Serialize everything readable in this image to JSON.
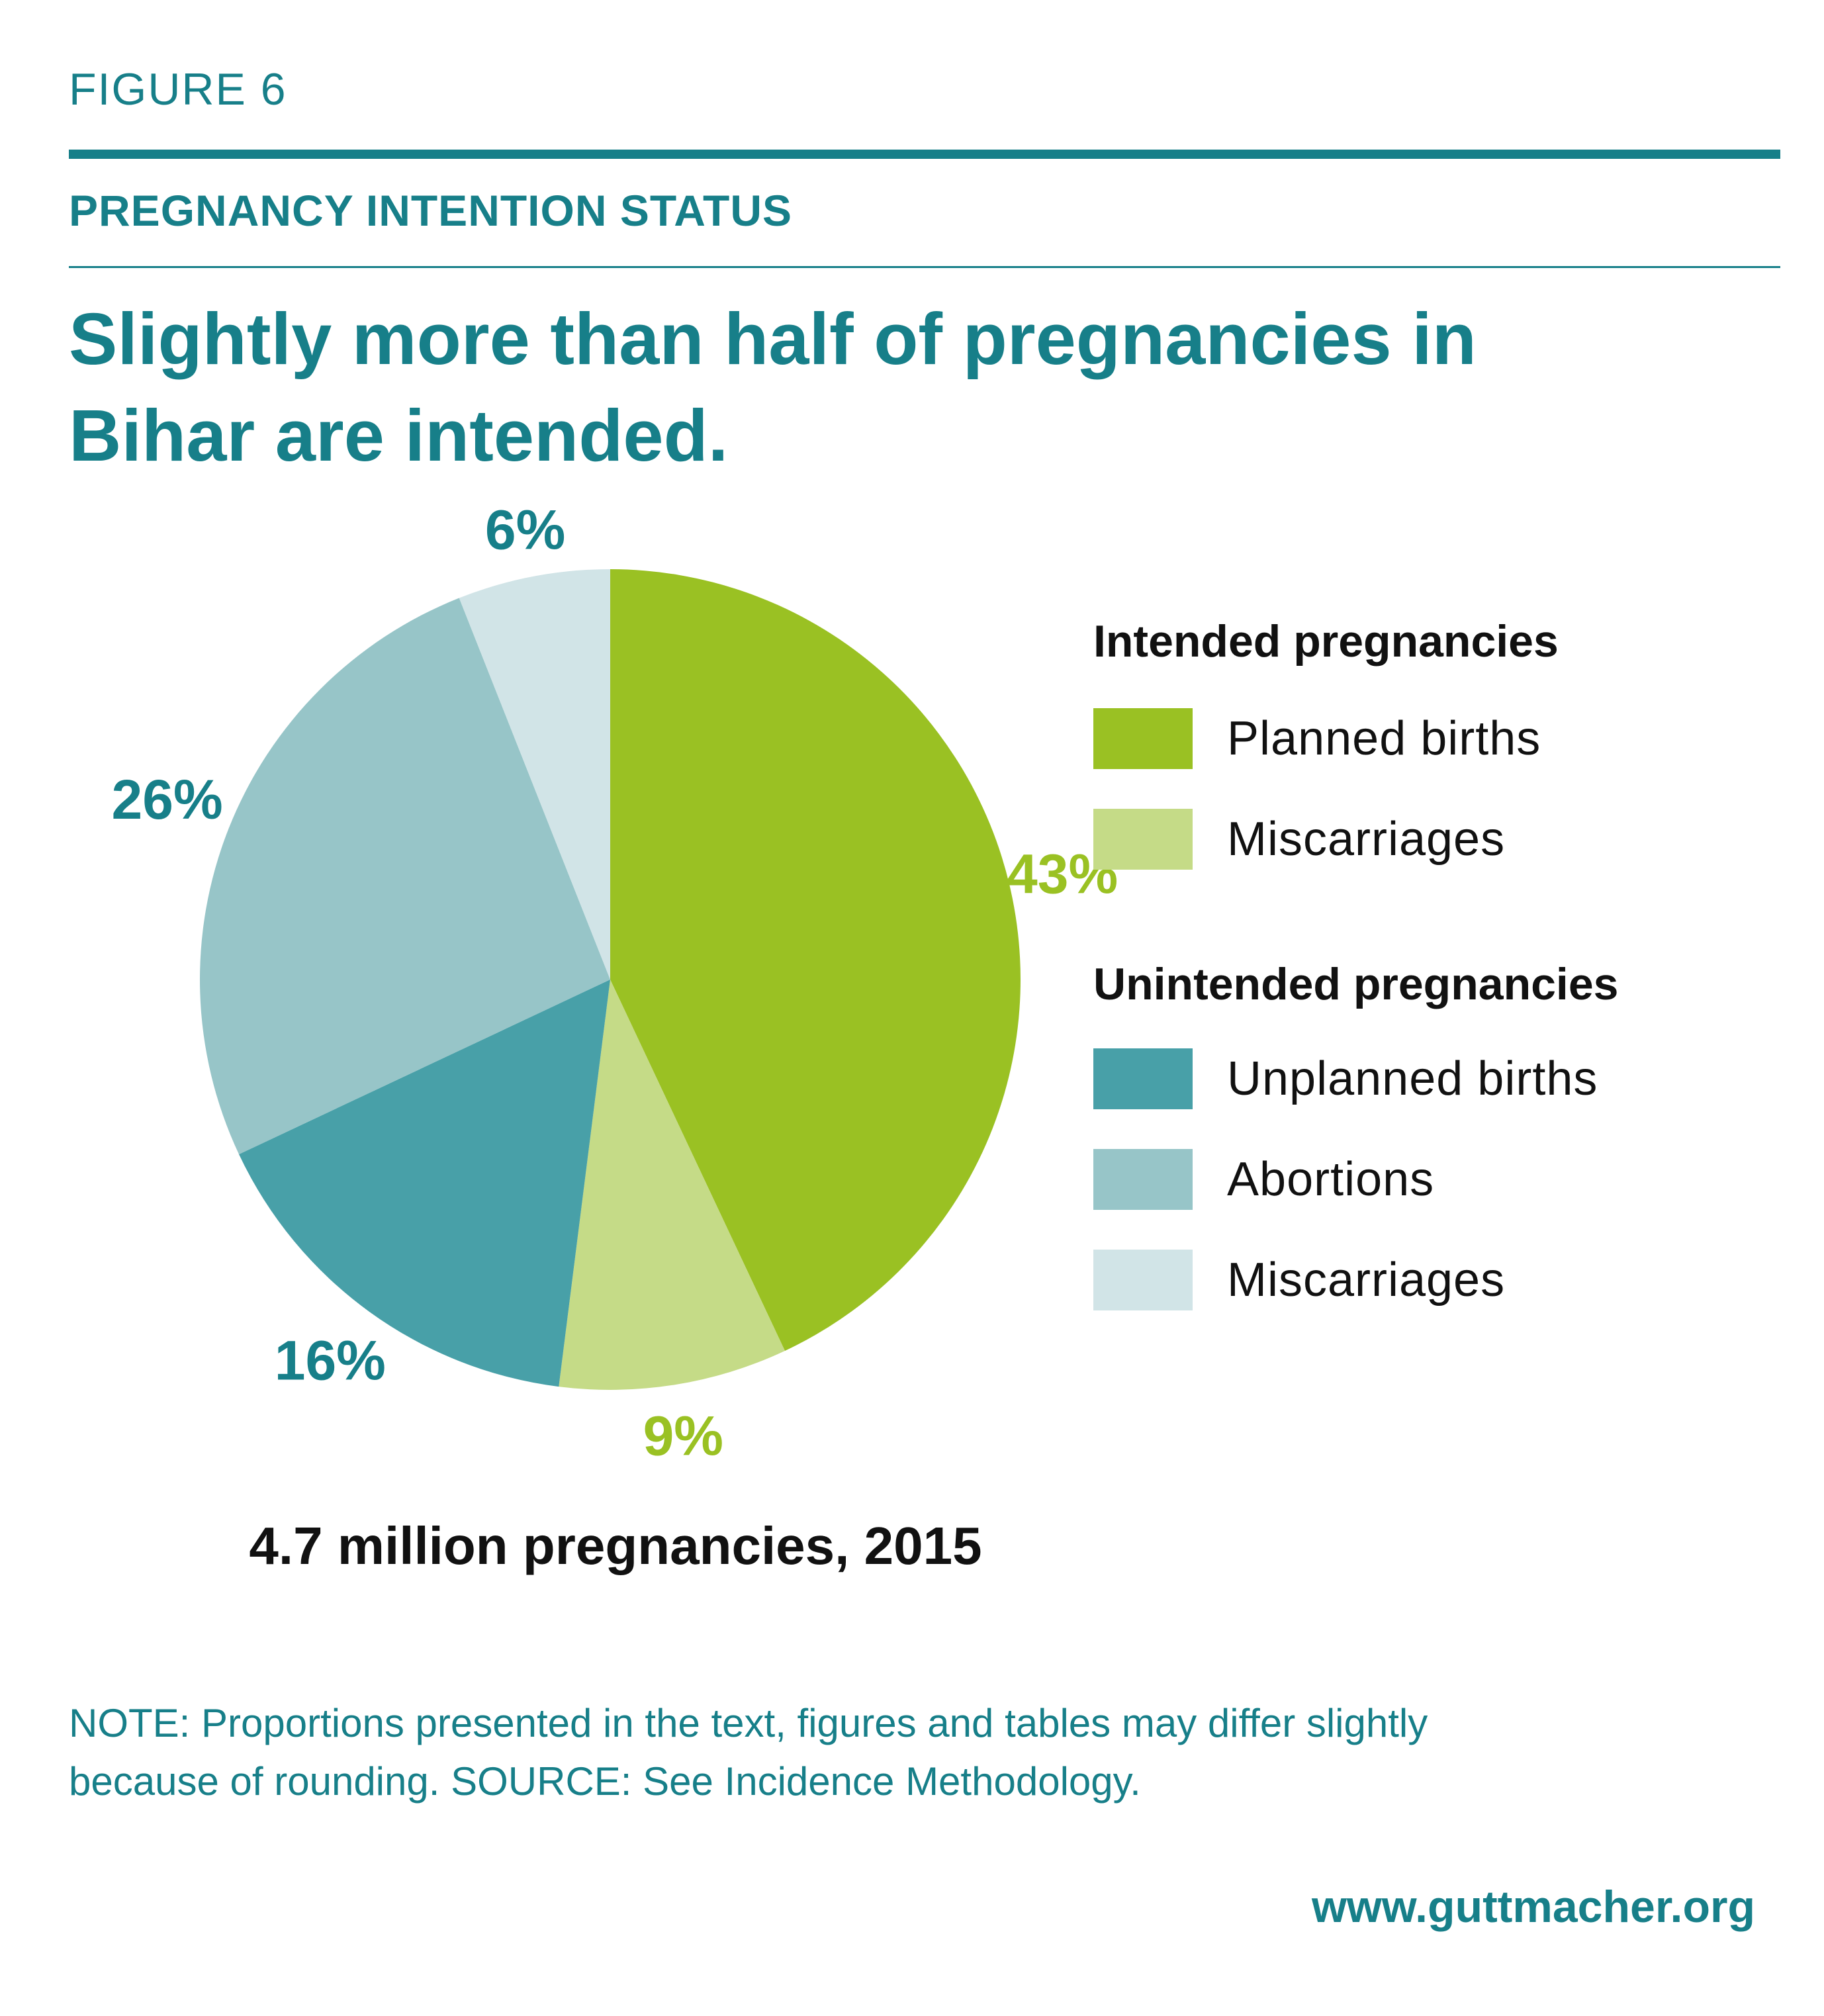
{
  "figure_label": "FIGURE 6",
  "section_title": "PREGNANCY INTENTION STATUS",
  "headline_line1": "Slightly more than half of pregnancies in",
  "headline_line2": "Bihar are intended.",
  "caption": "4.7 million pregnancies, 2015",
  "note_line1": "NOTE: Proportions presented in the text, figures and tables may differ slightly",
  "note_line2": "because of rounding. SOURCE: See Incidence Methodology.",
  "url": "www.guttmacher.org",
  "colors": {
    "teal_text": "#177f89",
    "green_text": "#9ac123"
  },
  "legend": {
    "groups": [
      {
        "heading": "Intended pregnancies",
        "items": [
          {
            "label": "Planned births",
            "color": "#9ac123"
          },
          {
            "label": "Miscarriages",
            "color": "#c5db87"
          }
        ]
      },
      {
        "heading": "Unintended pregnancies",
        "items": [
          {
            "label": "Unplanned births",
            "color": "#48a0a8"
          },
          {
            "label": "Abortions",
            "color": "#97c5c8"
          },
          {
            "label": "Miscarriages",
            "color": "#d1e4e7"
          }
        ]
      }
    ]
  },
  "chart_data": {
    "type": "pie",
    "title": "",
    "slices": [
      {
        "label": "43%",
        "value": 43,
        "color": "#9ac123",
        "category": "Planned births"
      },
      {
        "label": "9%",
        "value": 9,
        "color": "#c5db87",
        "category": "Miscarriages"
      },
      {
        "label": "16%",
        "value": 16,
        "color": "#48a0a8",
        "category": "Unplanned births"
      },
      {
        "label": "26%",
        "value": 26,
        "color": "#97c5c8",
        "category": "Abortions"
      },
      {
        "label": "6%",
        "value": 6,
        "color": "#d1e4e7",
        "category": "Miscarriages"
      }
    ],
    "start_angle": "12 o'clock",
    "direction": "clockwise",
    "label_colors": [
      "#9ac123",
      "#9ac123",
      "#177f89",
      "#177f89",
      "#177f89"
    ],
    "legend": "right"
  }
}
